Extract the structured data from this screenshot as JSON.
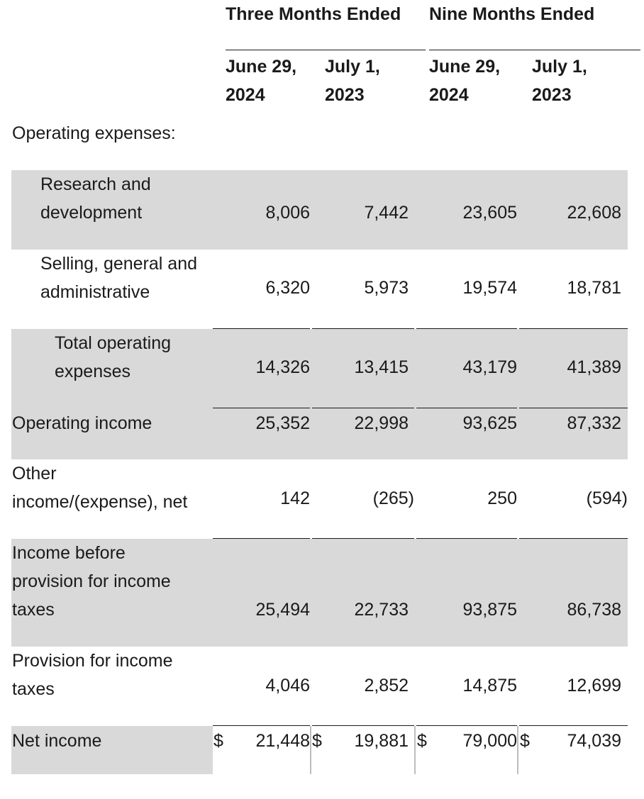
{
  "header": {
    "three_months": "Three Months Ended",
    "nine_months": "Nine Months Ended",
    "columns": [
      {
        "line1": "June 29,",
        "line2": "2024"
      },
      {
        "line1": "July 1,",
        "line2": "2023"
      },
      {
        "line1": "June 29,",
        "line2": "2024"
      },
      {
        "line1": "July 1,",
        "line2": "2023"
      }
    ]
  },
  "section_label": "Operating expenses:",
  "rows": {
    "rd": {
      "line1": "Research and",
      "line2": "development",
      "values": [
        "8,006",
        "7,442",
        "23,605",
        "22,608"
      ]
    },
    "sga": {
      "line1": "Selling, general and",
      "line2": "administrative",
      "values": [
        "6,320",
        "5,973",
        "19,574",
        "18,781"
      ]
    },
    "total_opex": {
      "line1": "Total operating",
      "line2": "expenses",
      "values": [
        "14,326",
        "13,415",
        "43,179",
        "41,389"
      ]
    },
    "operating_income": {
      "line1": "Operating income",
      "values": [
        "25,352",
        "22,998",
        "93,625",
        "87,332"
      ]
    },
    "other_income": {
      "line1": "Other",
      "line2": "income/(expense), net",
      "values": [
        "142",
        "(265)",
        "250",
        "(594)"
      ]
    },
    "income_before_tax": {
      "line1": "Income before",
      "line2": "provision for income",
      "line3": "taxes",
      "values": [
        "25,494",
        "22,733",
        "93,875",
        "86,738"
      ]
    },
    "provision": {
      "line1": "Provision for income",
      "line2": "taxes",
      "values": [
        "4,046",
        "2,852",
        "14,875",
        "12,699"
      ]
    },
    "net_income": {
      "line1": "Net income",
      "currency": "$",
      "values": [
        "21,448",
        "19,881",
        "79,000",
        "74,039"
      ]
    }
  }
}
